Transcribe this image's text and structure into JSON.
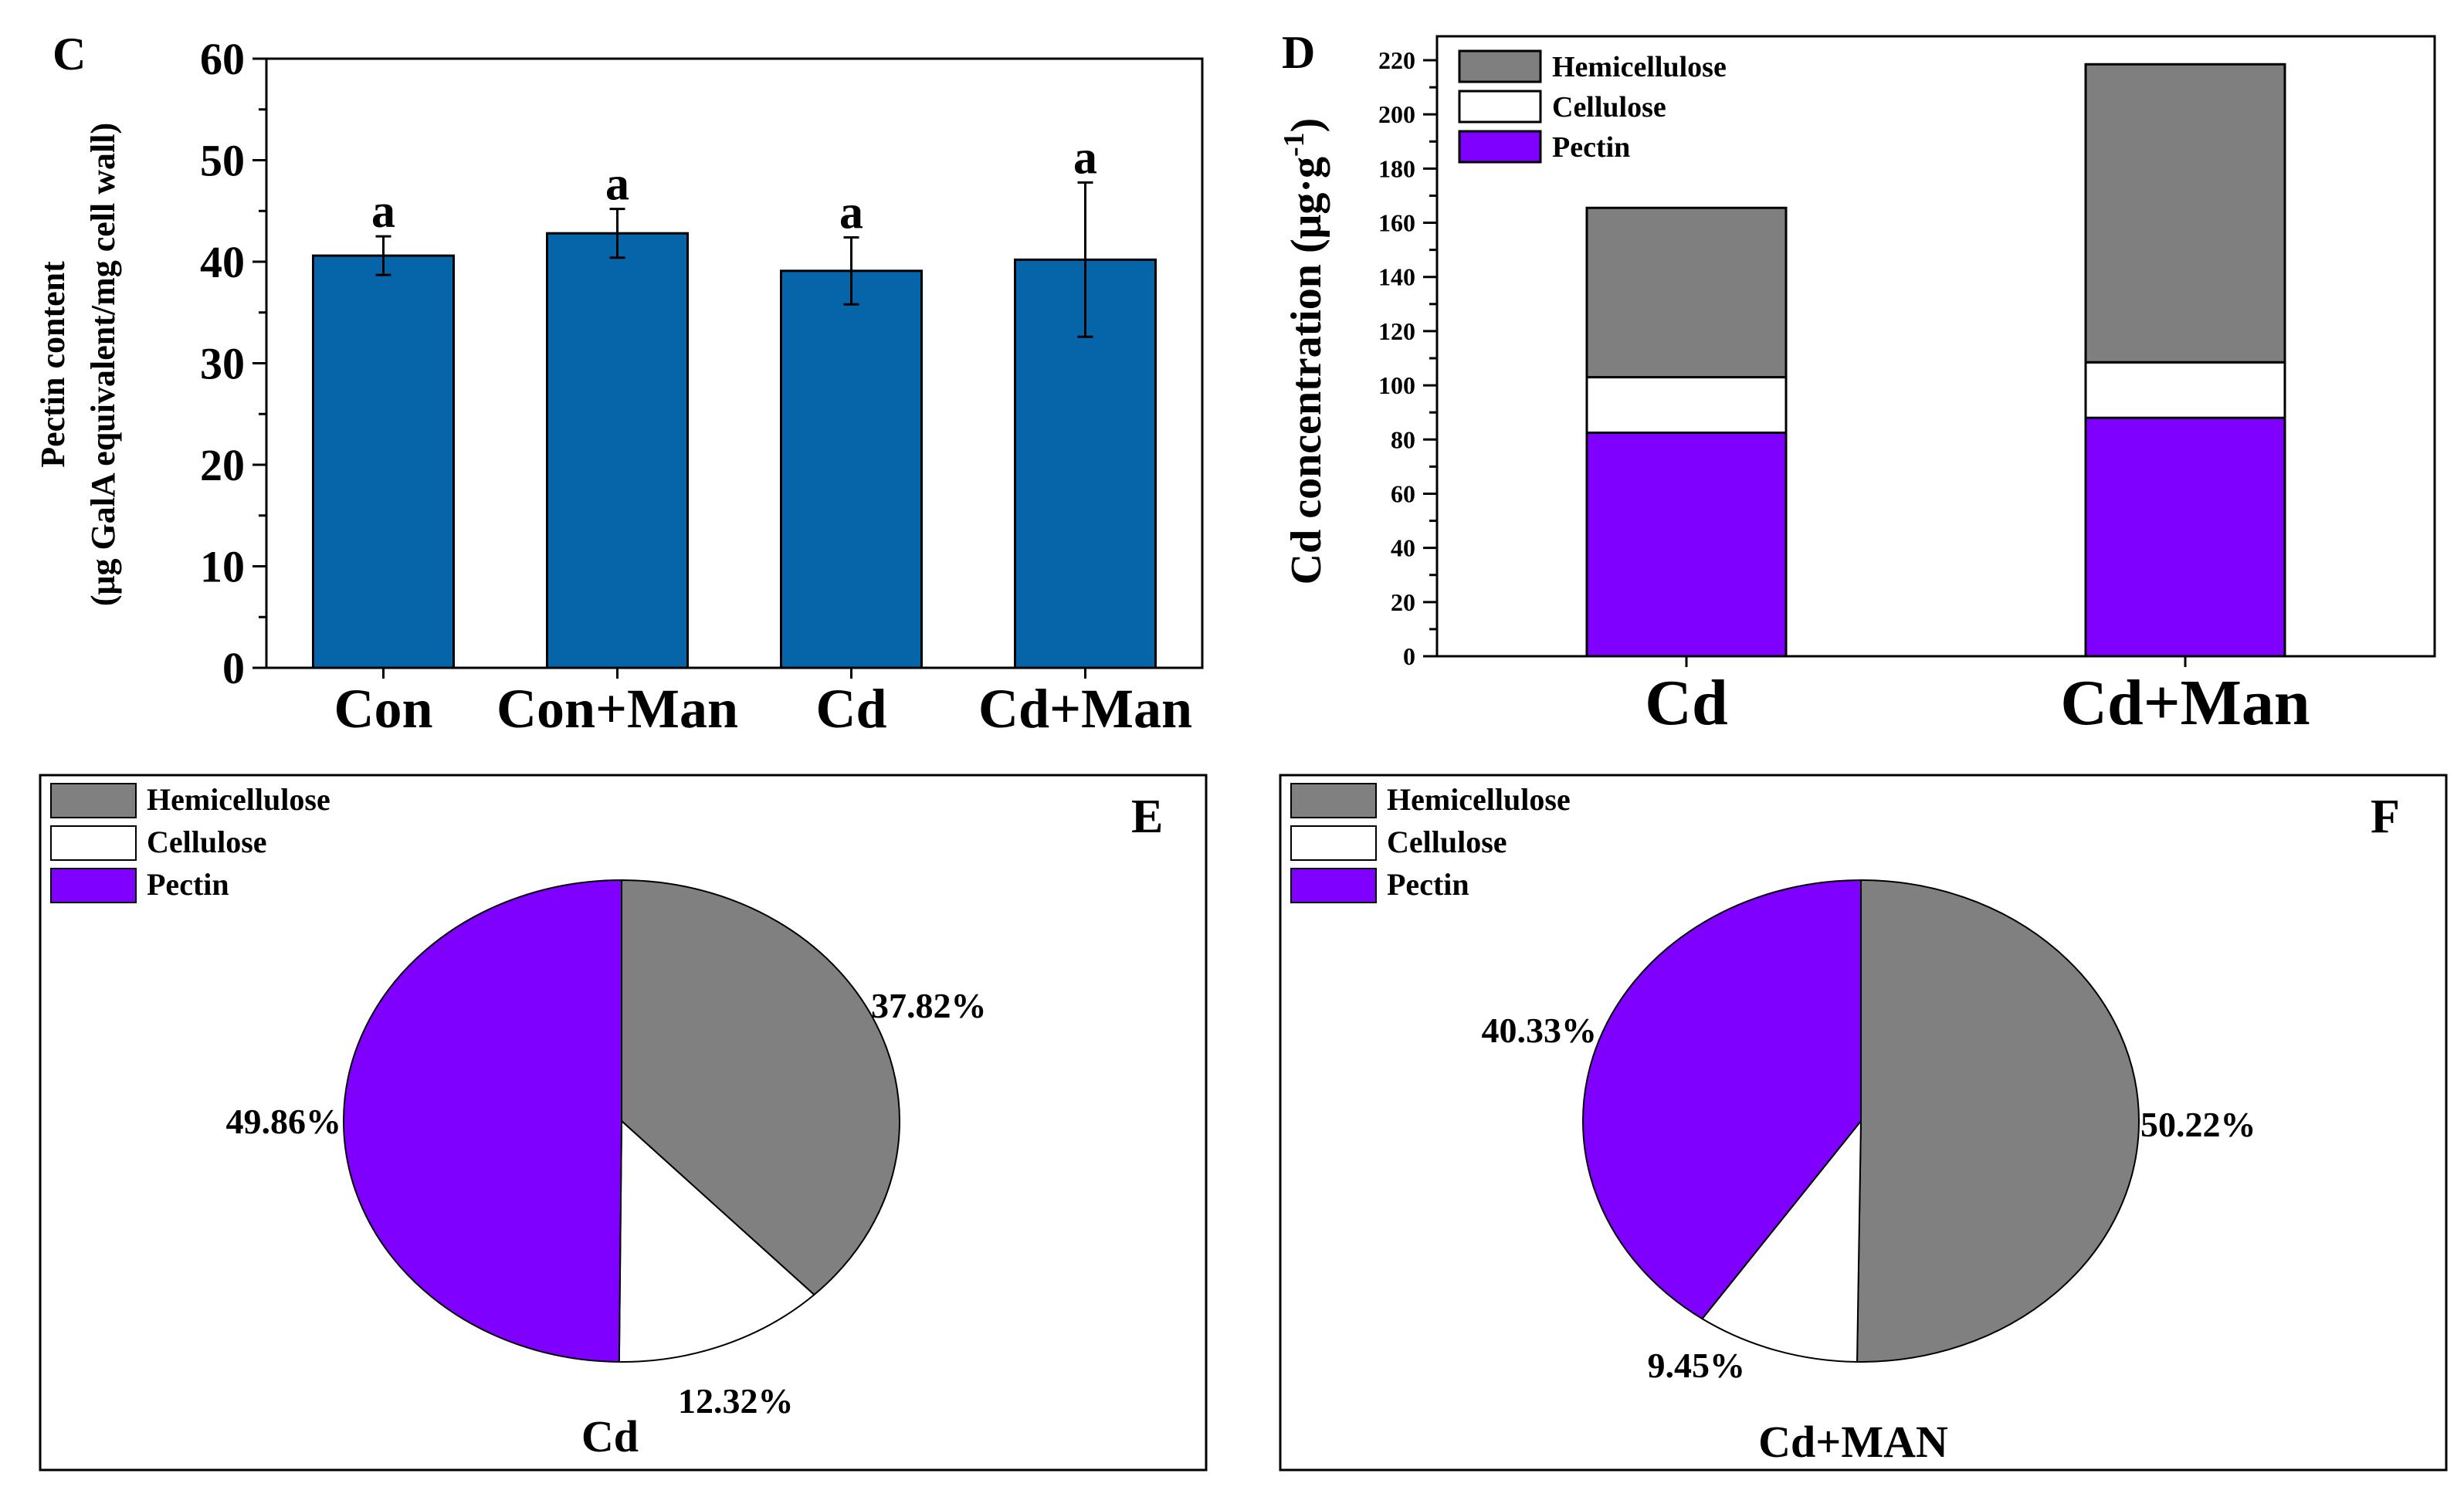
{
  "chart_data": [
    {
      "panel": "C",
      "type": "bar",
      "ylabel_line1": "Pectin content",
      "ylabel_line2": "(μg GalA equivalent/mg cell wall)",
      "ylim": [
        0,
        60
      ],
      "yticks": [
        0,
        10,
        20,
        30,
        40,
        50,
        60
      ],
      "categories": [
        "Con",
        "Con+Man",
        "Cd",
        "Cd+Man"
      ],
      "values": [
        40.6,
        42.8,
        39.1,
        40.2
      ],
      "errors": [
        1.9,
        2.4,
        3.3,
        7.6
      ],
      "significance": [
        "a",
        "a",
        "a",
        "a"
      ],
      "bar_color": "#0565a8"
    },
    {
      "panel": "D",
      "type": "stacked-bar",
      "ylabel": "Cd concentration (μg·g",
      "ylabel_sup": "-1",
      "ylabel_close": ")",
      "ylim": [
        0,
        220
      ],
      "yticks": [
        0,
        20,
        40,
        60,
        80,
        100,
        120,
        140,
        160,
        180,
        200,
        220
      ],
      "categories": [
        "Cd",
        "Cd+Man"
      ],
      "legend_position": "top-left",
      "series": [
        {
          "name": "Pectin",
          "values": [
            82.5,
            88.0
          ],
          "color": "#8000ff"
        },
        {
          "name": "Cellulose",
          "values": [
            20.5,
            20.5
          ],
          "color": "#ffffff"
        },
        {
          "name": "Hemicellulose",
          "values": [
            62.5,
            110.0
          ],
          "color": "#7f7f7f"
        }
      ],
      "legend": [
        "Hemicellulose",
        "Cellulose",
        "Pectin"
      ]
    },
    {
      "panel": "E",
      "type": "pie",
      "title": "Cd",
      "labels": [
        "Hemicellulose",
        "Cellulose",
        "Pectin"
      ],
      "values": [
        37.82,
        12.32,
        49.86
      ],
      "value_labels": [
        "37.82%",
        "12.32%",
        "49.86%"
      ],
      "colors": [
        "#808080",
        "#ffffff",
        "#8000ff"
      ],
      "legend_position": "top-left"
    },
    {
      "panel": "F",
      "type": "pie",
      "title": "Cd+MAN",
      "labels": [
        "Hemicellulose",
        "Cellulose",
        "Pectin"
      ],
      "values": [
        50.22,
        9.45,
        40.33
      ],
      "value_labels": [
        "50.22%",
        "9.45%",
        "40.33%"
      ],
      "colors": [
        "#808080",
        "#ffffff",
        "#8000ff"
      ],
      "legend_position": "top-left"
    }
  ]
}
